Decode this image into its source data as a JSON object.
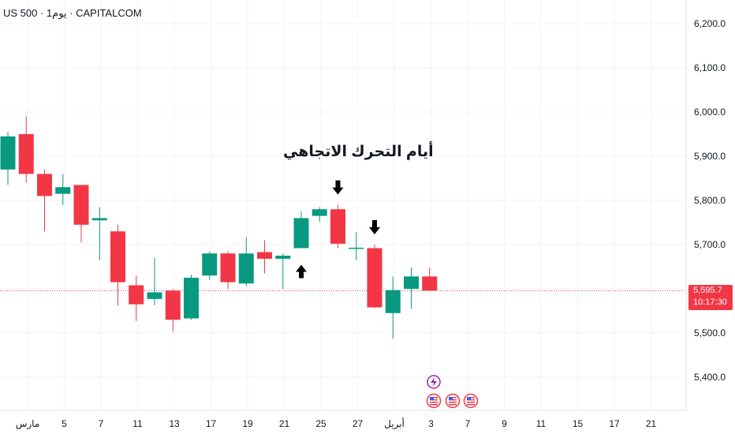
{
  "header": {
    "symbol_line": "US 500 · 1يوم · CAPITALCOM"
  },
  "annotation": {
    "text": "أيام التحرك الاتجاهي"
  },
  "price_badge": {
    "price": "5,595.7",
    "countdown": "10:17:30",
    "color": "#f23645"
  },
  "colors": {
    "up": "#089981",
    "down": "#f23645",
    "grid": "#f0f3fa",
    "event_icon": "#9c27b0"
  },
  "icons": {
    "lightning": "lightning-event-icon",
    "flag": "us-flag-event-icon",
    "arrow_up": "arrow-up-icon",
    "arrow_down": "arrow-down-icon"
  },
  "chart_data": {
    "type": "candlestick",
    "title": "",
    "ylim": [
      5335,
      6225
    ],
    "y_ticks": [
      "6,200.0",
      "6,100.0",
      "6,000.0",
      "5,900.0",
      "5,800.0",
      "5,700.0",
      "5,600.0",
      "5,500.0",
      "5,400.0"
    ],
    "y_tick_values": [
      6200,
      6100,
      6000,
      5900,
      5800,
      5700,
      5600,
      5500,
      5400
    ],
    "x_labels": [
      "مارس",
      "5",
      "7",
      "11",
      "13",
      "17",
      "19",
      "21",
      "25",
      "27",
      "أبريل",
      "3",
      "7",
      "9",
      "11",
      "15",
      "17",
      "21"
    ],
    "candles": [
      {
        "open": 5870,
        "high": 5955,
        "low": 5835,
        "close": 5945
      },
      {
        "open": 5950,
        "high": 5990,
        "low": 5840,
        "close": 5860
      },
      {
        "open": 5860,
        "high": 5870,
        "low": 5730,
        "close": 5810
      },
      {
        "open": 5815,
        "high": 5860,
        "low": 5790,
        "close": 5830
      },
      {
        "open": 5835,
        "high": 5835,
        "low": 5705,
        "close": 5745
      },
      {
        "open": 5755,
        "high": 5785,
        "low": 5665,
        "close": 5760
      },
      {
        "open": 5730,
        "high": 5745,
        "low": 5562,
        "close": 5615
      },
      {
        "open": 5608,
        "high": 5630,
        "low": 5527,
        "close": 5565
      },
      {
        "open": 5577,
        "high": 5670,
        "low": 5563,
        "close": 5592
      },
      {
        "open": 5596,
        "high": 5600,
        "low": 5503,
        "close": 5530
      },
      {
        "open": 5533,
        "high": 5632,
        "low": 5530,
        "close": 5625
      },
      {
        "open": 5630,
        "high": 5685,
        "low": 5620,
        "close": 5680
      },
      {
        "open": 5680,
        "high": 5685,
        "low": 5600,
        "close": 5615
      },
      {
        "open": 5612,
        "high": 5717,
        "low": 5606,
        "close": 5680
      },
      {
        "open": 5683,
        "high": 5710,
        "low": 5635,
        "close": 5668
      },
      {
        "open": 5668,
        "high": 5680,
        "low": 5600,
        "close": 5675
      },
      {
        "open": 5692,
        "high": 5775,
        "low": 5692,
        "close": 5760
      },
      {
        "open": 5765,
        "high": 5785,
        "low": 5752,
        "close": 5780
      },
      {
        "open": 5780,
        "high": 5790,
        "low": 5692,
        "close": 5702
      },
      {
        "open": 5693,
        "high": 5728,
        "low": 5665,
        "close": 5693
      },
      {
        "open": 5692,
        "high": 5700,
        "low": 5557,
        "close": 5558
      },
      {
        "open": 5545,
        "high": 5628,
        "low": 5487,
        "close": 5597
      },
      {
        "open": 5600,
        "high": 5648,
        "low": 5555,
        "close": 5628
      },
      {
        "open": 5628,
        "high": 5648,
        "low": 5597,
        "close": 5596
      }
    ],
    "current_price": 5595.7,
    "markers": [
      {
        "candle": 16,
        "type": "arrow-up"
      },
      {
        "candle": 18,
        "type": "arrow-down"
      },
      {
        "candle": 20,
        "type": "arrow-down"
      }
    ]
  }
}
